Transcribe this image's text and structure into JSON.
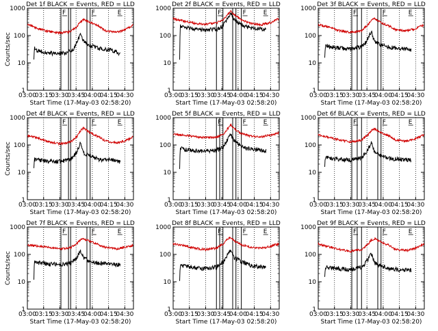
{
  "colors": {
    "events": "#000000",
    "lld": "#d00000",
    "background": "#ffffff"
  },
  "chart_data": [
    {
      "type": "line",
      "title": "Det 1f  BLACK = Events, RED = LLD",
      "xlabel": "Start Time (17-May-03 02:58:20)",
      "ylabel": "Counts/sec",
      "y_scale": "log",
      "ylim": [
        1,
        1000
      ],
      "yticks": [
        "1",
        "10",
        "100",
        "1000"
      ],
      "xticks": [
        "03:00",
        "03:15",
        "03:30",
        "03:45",
        "04:00",
        "04:15",
        "04:30"
      ],
      "xlim": [
        180,
        278
      ],
      "box_lines": [
        211,
        218,
        220,
        235,
        238
      ],
      "range_marks": [
        {
          "label": "F",
          "x": 211
        },
        {
          "label": "F",
          "x": 238
        },
        {
          "label": "E",
          "x": 262
        }
      ],
      "series": [
        {
          "name": "BLACK = Events",
          "x": [
            186,
            186.5,
            188,
            195,
            205,
            215,
            222,
            226,
            229,
            232,
            238,
            246,
            258,
            266
          ],
          "values": [
            12,
            35,
            30,
            25,
            22,
            24,
            30,
            60,
            110,
            60,
            45,
            34,
            30,
            22
          ]
        },
        {
          "name": "RED = LLD",
          "x": [
            180,
            190,
            200,
            210,
            220,
            226,
            229,
            232,
            238,
            246,
            252,
            262,
            270,
            278
          ],
          "values": [
            260,
            180,
            140,
            125,
            140,
            220,
            320,
            390,
            300,
            230,
            150,
            130,
            160,
            250
          ]
        }
      ]
    },
    {
      "type": "line",
      "title": "Det 2f  BLACK = Events, RED = LLD",
      "xlabel": "Start Time (17-May-03 02:58:20)",
      "ylabel": "",
      "y_scale": "log",
      "ylim": [
        1,
        1000
      ],
      "yticks": [
        "1",
        "10",
        "100",
        "1000"
      ],
      "xticks": [
        "03:00",
        "03:15",
        "03:30",
        "03:45",
        "04:00",
        "04:15",
        "04:30"
      ],
      "xlim": [
        180,
        278
      ],
      "box_lines": [
        220,
        226,
        235,
        238,
        243
      ],
      "range_marks": [
        {
          "label": "F",
          "x": 220
        },
        {
          "label": "F",
          "x": 243
        },
        {
          "label": "E",
          "x": 262
        }
      ],
      "series": [
        {
          "name": "BLACK = Events",
          "x": [
            186,
            186.5,
            190,
            200,
            210,
            220,
            226,
            230,
            233,
            236,
            243,
            252,
            262,
            266
          ],
          "values": [
            14,
            220,
            200,
            170,
            160,
            170,
            230,
            400,
            620,
            400,
            250,
            190,
            170,
            160
          ]
        },
        {
          "name": "RED = LLD",
          "x": [
            180,
            190,
            200,
            210,
            220,
            226,
            230,
            233,
            236,
            243,
            252,
            262,
            270,
            278
          ],
          "values": [
            420,
            340,
            280,
            260,
            290,
            380,
            560,
            800,
            580,
            380,
            270,
            250,
            300,
            420
          ]
        }
      ]
    },
    {
      "type": "line",
      "title": "Det 3f  BLACK = Events, RED = LLD",
      "xlabel": "Start Time (17-May-03 02:58:20)",
      "ylabel": "",
      "y_scale": "log",
      "ylim": [
        1,
        1000
      ],
      "yticks": [
        "1",
        "10",
        "100",
        "1000"
      ],
      "xticks": [
        "03:00",
        "03:15",
        "03:30",
        "03:45",
        "04:00",
        "04:15",
        "04:30"
      ],
      "xlim": [
        180,
        278
      ],
      "box_lines": [
        211,
        216,
        220,
        235,
        238
      ],
      "range_marks": [
        {
          "label": "F",
          "x": 211
        },
        {
          "label": "F",
          "x": 238
        },
        {
          "label": "E",
          "x": 262
        }
      ],
      "series": [
        {
          "name": "BLACK = Events",
          "x": [
            186,
            186.5,
            190,
            200,
            210,
            220,
            224,
            229,
            232,
            238,
            246,
            258,
            266
          ],
          "values": [
            14,
            45,
            40,
            35,
            32,
            40,
            55,
            140,
            60,
            45,
            38,
            34,
            30
          ]
        },
        {
          "name": "RED = LLD",
          "x": [
            180,
            190,
            200,
            210,
            220,
            226,
            229,
            232,
            238,
            246,
            252,
            262,
            270,
            278
          ],
          "values": [
            250,
            200,
            150,
            130,
            150,
            250,
            360,
            420,
            300,
            220,
            160,
            150,
            180,
            250
          ]
        }
      ]
    },
    {
      "type": "line",
      "title": "Det 4f  BLACK = Events, RED = LLD",
      "xlabel": "Start Time (17-May-03 02:58:20)",
      "ylabel": "Counts/sec",
      "y_scale": "log",
      "ylim": [
        1,
        1000
      ],
      "yticks": [
        "1",
        "10",
        "100",
        "1000"
      ],
      "xticks": [
        "03:00",
        "03:15",
        "03:30",
        "03:45",
        "04:00",
        "04:15",
        "04:30"
      ],
      "xlim": [
        180,
        278
      ],
      "box_lines": [
        211,
        218,
        220,
        235,
        238
      ],
      "range_marks": [
        {
          "label": "F",
          "x": 211
        },
        {
          "label": "F",
          "x": 238
        },
        {
          "label": "E",
          "x": 262
        }
      ],
      "series": [
        {
          "name": "BLACK = Events",
          "x": [
            186,
            186.5,
            190,
            200,
            210,
            220,
            225,
            229,
            232,
            238,
            246,
            258,
            266
          ],
          "values": [
            14,
            30,
            28,
            26,
            25,
            30,
            50,
            120,
            50,
            40,
            30,
            28,
            24
          ]
        },
        {
          "name": "RED = LLD",
          "x": [
            180,
            190,
            200,
            210,
            220,
            226,
            229,
            232,
            238,
            246,
            252,
            262,
            270,
            278
          ],
          "values": [
            220,
            180,
            130,
            110,
            130,
            210,
            340,
            410,
            280,
            200,
            140,
            120,
            140,
            200
          ]
        }
      ]
    },
    {
      "type": "line",
      "title": "Det 5f  BLACK = Events, RED = LLD",
      "xlabel": "Start Time (17-May-03 02:58:20)",
      "ylabel": "",
      "y_scale": "log",
      "ylim": [
        1,
        1000
      ],
      "yticks": [
        "1",
        "10",
        "100",
        "1000"
      ],
      "xticks": [
        "03:00",
        "03:15",
        "03:30",
        "03:45",
        "04:00",
        "04:15",
        "04:30"
      ],
      "xlim": [
        180,
        278
      ],
      "box_lines": [
        220,
        223,
        226,
        235,
        238,
        243
      ],
      "range_marks": [
        {
          "label": "F",
          "x": 220
        },
        {
          "label": "F",
          "x": 243
        },
        {
          "label": "E",
          "x": 262
        }
      ],
      "series": [
        {
          "name": "BLACK = Events",
          "x": [
            186,
            186.5,
            190,
            200,
            210,
            220,
            226,
            230,
            233,
            236,
            243,
            252,
            262,
            266
          ],
          "values": [
            12,
            75,
            70,
            62,
            60,
            65,
            80,
            150,
            240,
            150,
            90,
            70,
            65,
            62
          ]
        },
        {
          "name": "RED = LLD",
          "x": [
            180,
            190,
            200,
            210,
            220,
            226,
            230,
            233,
            236,
            243,
            252,
            262,
            270,
            278
          ],
          "values": [
            250,
            230,
            200,
            185,
            195,
            240,
            380,
            560,
            400,
            260,
            210,
            200,
            230,
            280
          ]
        }
      ]
    },
    {
      "type": "line",
      "title": "Det 6f  BLACK = Events, RED = LLD",
      "xlabel": "Start Time (17-May-03 02:58:20)",
      "ylabel": "",
      "y_scale": "log",
      "ylim": [
        1,
        1000
      ],
      "yticks": [
        "1",
        "10",
        "100",
        "1000"
      ],
      "xticks": [
        "03:00",
        "03:15",
        "03:30",
        "03:45",
        "04:00",
        "04:15",
        "04:30"
      ],
      "xlim": [
        180,
        278
      ],
      "box_lines": [
        211,
        216,
        220,
        235,
        238
      ],
      "range_marks": [
        {
          "label": "F",
          "x": 211
        },
        {
          "label": "F",
          "x": 238
        },
        {
          "label": "E",
          "x": 262
        }
      ],
      "series": [
        {
          "name": "BLACK = Events",
          "x": [
            186,
            186.5,
            190,
            200,
            210,
            220,
            224,
            229,
            232,
            238,
            246,
            258,
            266
          ],
          "values": [
            14,
            35,
            33,
            30,
            28,
            35,
            50,
            120,
            55,
            40,
            32,
            30,
            28
          ]
        },
        {
          "name": "RED = LLD",
          "x": [
            180,
            190,
            200,
            210,
            220,
            226,
            229,
            232,
            238,
            246,
            252,
            262,
            270,
            278
          ],
          "values": [
            240,
            190,
            150,
            130,
            150,
            240,
            340,
            390,
            280,
            210,
            150,
            140,
            170,
            240
          ]
        }
      ]
    },
    {
      "type": "line",
      "title": "Det 7f  BLACK = Events, RED = LLD",
      "xlabel": "Start Time (17-May-03 02:58:20)",
      "ylabel": "Counts/sec",
      "y_scale": "log",
      "ylim": [
        1,
        1000
      ],
      "yticks": [
        "1",
        "10",
        "100",
        "1000"
      ],
      "xticks": [
        "03:00",
        "03:15",
        "03:30",
        "03:45",
        "04:00",
        "04:15",
        "04:30"
      ],
      "xlim": [
        180,
        278
      ],
      "box_lines": [
        211,
        218,
        220,
        235,
        238
      ],
      "range_marks": [
        {
          "label": "F",
          "x": 211
        },
        {
          "label": "F",
          "x": 238
        },
        {
          "label": "E",
          "x": 262
        }
      ],
      "series": [
        {
          "name": "BLACK = Events",
          "x": [
            186,
            186.5,
            190,
            200,
            210,
            220,
            225,
            229,
            232,
            238,
            246,
            258,
            266
          ],
          "values": [
            14,
            55,
            50,
            45,
            42,
            50,
            70,
            130,
            75,
            55,
            48,
            45,
            42
          ]
        },
        {
          "name": "RED = LLD",
          "x": [
            180,
            190,
            200,
            210,
            220,
            226,
            229,
            232,
            238,
            246,
            252,
            262,
            270,
            278
          ],
          "values": [
            220,
            200,
            180,
            160,
            180,
            260,
            340,
            380,
            300,
            230,
            180,
            160,
            180,
            220
          ]
        }
      ]
    },
    {
      "type": "line",
      "title": "Det 8f  BLACK = Events, RED = LLD",
      "xlabel": "Start Time (17-May-03 02:58:20)",
      "ylabel": "",
      "y_scale": "log",
      "ylim": [
        1,
        1000
      ],
      "yticks": [
        "1",
        "10",
        "100",
        "1000"
      ],
      "xticks": [
        "03:00",
        "03:15",
        "03:30",
        "03:45",
        "04:00",
        "04:15",
        "04:30"
      ],
      "xlim": [
        180,
        278
      ],
      "box_lines": [
        220,
        223,
        226,
        235,
        238,
        243
      ],
      "range_marks": [
        {
          "label": "F",
          "x": 220
        },
        {
          "label": "F",
          "x": 243
        },
        {
          "label": "E",
          "x": 262
        }
      ],
      "series": [
        {
          "name": "BLACK = Events",
          "x": [
            186,
            186.5,
            190,
            200,
            210,
            220,
            226,
            230,
            233,
            236,
            243,
            252,
            262,
            266
          ],
          "values": [
            12,
            40,
            38,
            33,
            30,
            35,
            50,
            100,
            140,
            80,
            55,
            40,
            35,
            32
          ]
        },
        {
          "name": "RED = LLD",
          "x": [
            180,
            190,
            200,
            210,
            220,
            226,
            230,
            233,
            236,
            243,
            252,
            262,
            270,
            278
          ],
          "values": [
            250,
            210,
            170,
            150,
            170,
            240,
            350,
            420,
            320,
            230,
            180,
            170,
            200,
            250
          ]
        }
      ]
    },
    {
      "type": "line",
      "title": "Det 9f  BLACK = Events, RED = LLD",
      "xlabel": "Start Time (17-May-03 02:58:20)",
      "ylabel": "",
      "y_scale": "log",
      "ylim": [
        1,
        1000
      ],
      "yticks": [
        "1",
        "10",
        "100",
        "1000"
      ],
      "xticks": [
        "03:00",
        "03:15",
        "03:30",
        "03:45",
        "04:00",
        "04:15",
        "04:30"
      ],
      "xlim": [
        180,
        278
      ],
      "box_lines": [
        211,
        216,
        220,
        235,
        238
      ],
      "range_marks": [
        {
          "label": "F",
          "x": 211
        },
        {
          "label": "F",
          "x": 238
        },
        {
          "label": "E",
          "x": 262
        }
      ],
      "series": [
        {
          "name": "BLACK = Events",
          "x": [
            186,
            186.5,
            190,
            200,
            210,
            220,
            224,
            229,
            232,
            238,
            246,
            258,
            266
          ],
          "values": [
            14,
            35,
            33,
            30,
            28,
            35,
            50,
            110,
            50,
            38,
            30,
            28,
            26
          ]
        },
        {
          "name": "RED = LLD",
          "x": [
            180,
            190,
            200,
            210,
            220,
            226,
            229,
            232,
            238,
            246,
            252,
            262,
            270,
            278
          ],
          "values": [
            240,
            190,
            150,
            130,
            150,
            240,
            330,
            380,
            280,
            210,
            150,
            140,
            170,
            240
          ]
        }
      ]
    }
  ]
}
